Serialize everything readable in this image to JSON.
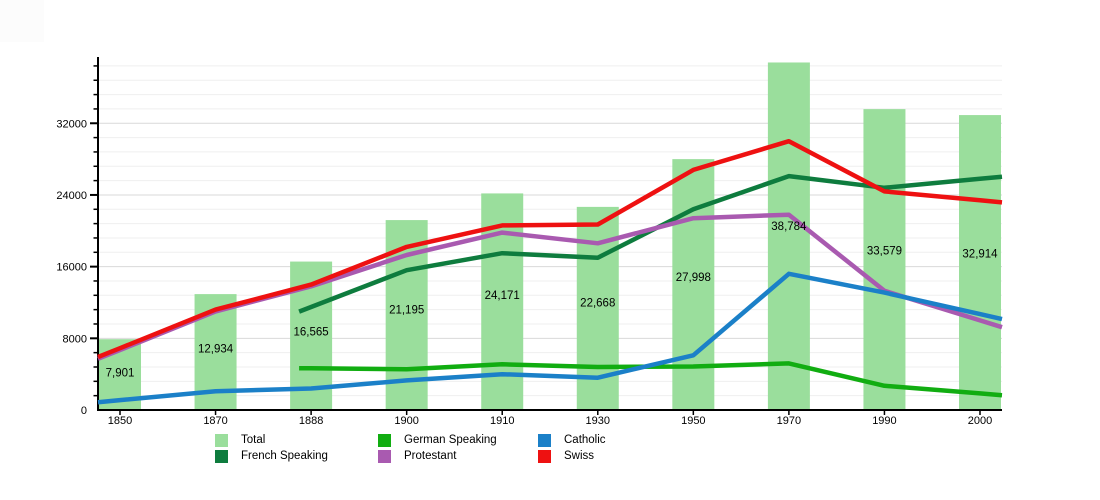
{
  "chart_data": {
    "type": "bar",
    "subtype": "combo-bar-line",
    "title": "",
    "xlabel": "",
    "ylabel": "",
    "categories": [
      "1850",
      "1870",
      "1888",
      "1900",
      "1910",
      "1930",
      "1950",
      "1970",
      "1990",
      "2000"
    ],
    "bars": {
      "name": "Total",
      "color": "#9ade9c",
      "values": [
        7901,
        12934,
        16565,
        21195,
        24171,
        22668,
        27998,
        38784,
        33579,
        32914
      ],
      "labels": [
        "7,901",
        "12,934",
        "16,565",
        "21,195",
        "24,171",
        "22,668",
        "27,998",
        "38,784",
        "33,579",
        "32,914"
      ]
    },
    "series": [
      {
        "name": "French Speaking",
        "color": "#0e7c3e",
        "values": [
          null,
          null,
          11500,
          15600,
          17500,
          17000,
          22400,
          26100,
          24800,
          25800
        ]
      },
      {
        "name": "German Speaking",
        "color": "#11ad11",
        "values": [
          null,
          null,
          4650,
          4550,
          5100,
          4800,
          4850,
          5200,
          2700,
          1850
        ]
      },
      {
        "name": "Protestant",
        "color": "#a95ab0",
        "values": [
          6700,
          11000,
          13800,
          17300,
          19800,
          18600,
          21400,
          21800,
          13300,
          10000
        ]
      },
      {
        "name": "Catholic",
        "color": "#1b80c8",
        "values": [
          1100,
          2100,
          2400,
          3300,
          4000,
          3600,
          6100,
          15200,
          13100,
          10700
        ]
      },
      {
        "name": "Swiss",
        "color": "#ee1111",
        "values": [
          6900,
          11200,
          14000,
          18200,
          20600,
          20700,
          26800,
          30000,
          24400,
          23400
        ]
      }
    ],
    "y_axis": {
      "min": 0,
      "max": 39395,
      "major_step": 8000,
      "minor_step": 1600,
      "tick_labels": [
        "0",
        "8000",
        "16000",
        "24000",
        "32000"
      ]
    },
    "grid": true,
    "legend_position": "bottom"
  },
  "legend": {
    "items": [
      {
        "label": "Total",
        "color": "#9ade9c"
      },
      {
        "label": "French Speaking",
        "color": "#0e7c3e"
      },
      {
        "label": "German Speaking",
        "color": "#11ad11"
      },
      {
        "label": "Protestant",
        "color": "#a95ab0"
      },
      {
        "label": "Catholic",
        "color": "#1b80c8"
      },
      {
        "label": "Swiss",
        "color": "#ee1111"
      }
    ]
  }
}
